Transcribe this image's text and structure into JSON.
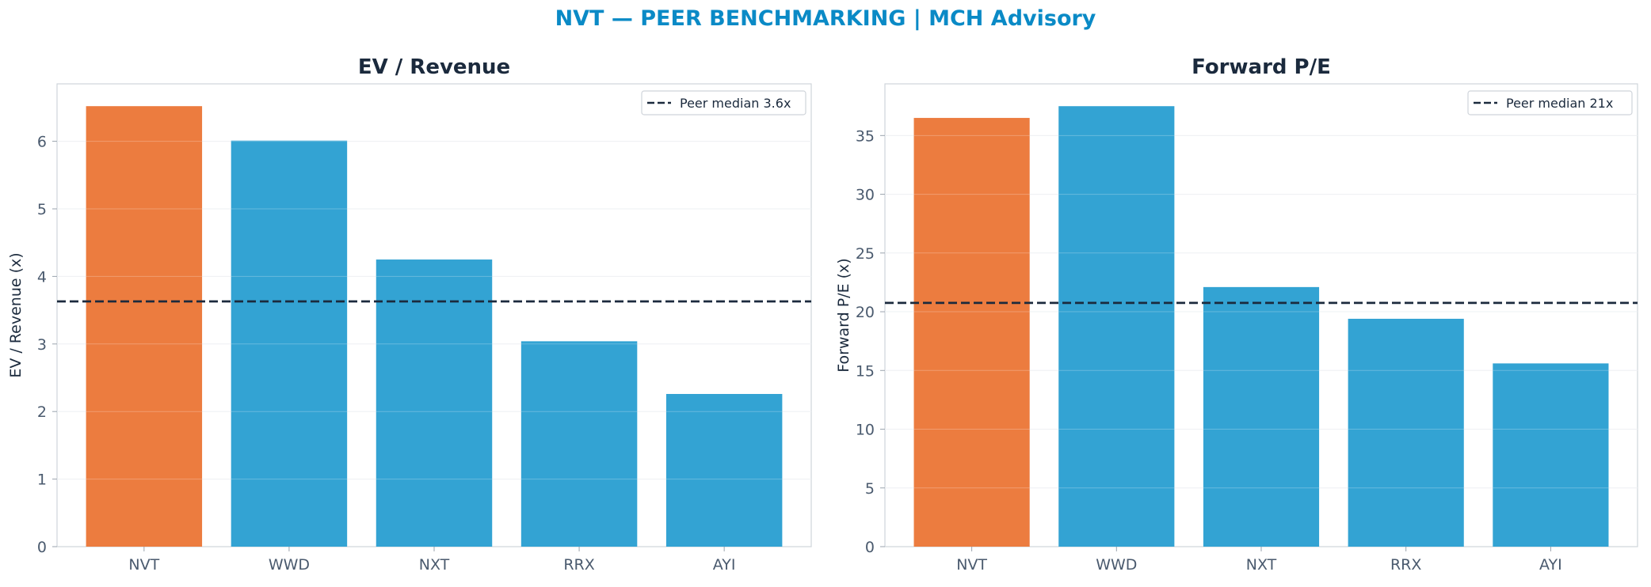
{
  "figure_title": "NVT — PEER BENCHMARKING | MCH Advisory",
  "colors": {
    "highlight": "#ec7c3f",
    "peer": "#33a3d3",
    "median_line": "#1b2a3d",
    "title": "#0a8ac6"
  },
  "chart_data": [
    {
      "type": "bar",
      "title": "EV / Revenue",
      "xlabel": "",
      "ylabel": "EV / Revenue (x)",
      "categories": [
        "NVT",
        "WWD",
        "NXT",
        "RRX",
        "AYI"
      ],
      "values": [
        6.52,
        6.01,
        4.25,
        3.04,
        2.26
      ],
      "highlight": "NVT",
      "ylim": [
        0,
        6.85
      ],
      "yticks": [
        0,
        1,
        2,
        3,
        4,
        5,
        6
      ],
      "reference_line": {
        "value": 3.63,
        "label": "Peer median 3.6x",
        "style": "dashed"
      },
      "legend": "top-right",
      "grid": "horizontal"
    },
    {
      "type": "bar",
      "title": "Forward P/E",
      "xlabel": "",
      "ylabel": "Forward P/E (x)",
      "categories": [
        "NVT",
        "WWD",
        "NXT",
        "RRX",
        "AYI"
      ],
      "values": [
        36.5,
        37.5,
        22.1,
        19.4,
        15.6
      ],
      "highlight": "NVT",
      "ylim": [
        0,
        39.4
      ],
      "yticks": [
        0,
        5,
        10,
        15,
        20,
        25,
        30,
        35
      ],
      "reference_line": {
        "value": 20.75,
        "label": "Peer median 21x",
        "style": "dashed"
      },
      "legend": "top-right",
      "grid": "horizontal"
    }
  ]
}
